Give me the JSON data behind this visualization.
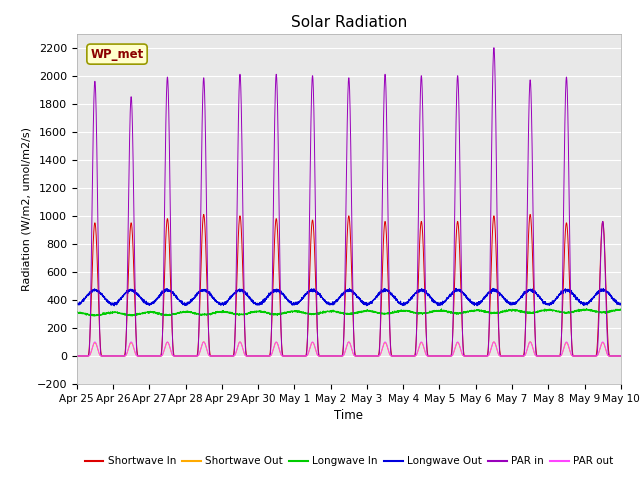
{
  "title": "Solar Radiation",
  "ylabel": "Radiation (W/m2, umol/m2/s)",
  "xlabel": "Time",
  "ylim": [
    -200,
    2300
  ],
  "yticks": [
    -200,
    0,
    200,
    400,
    600,
    800,
    1000,
    1200,
    1400,
    1600,
    1800,
    2000,
    2200
  ],
  "plot_bg": "#e8e8e8",
  "fig_bg": "#ffffff",
  "station_label": "WP_met",
  "colors": {
    "shortwave_in": "#dd0000",
    "shortwave_out": "#ffaa00",
    "longwave_in": "#00cc00",
    "longwave_out": "#0000dd",
    "par_in": "#9900bb",
    "par_out": "#ff44ff"
  },
  "n_days": 15,
  "ppd": 288,
  "xtick_labels": [
    "Apr 25",
    "Apr 26",
    "Apr 27",
    "Apr 28",
    "Apr 29",
    "Apr 30",
    "May 1",
    "May 2",
    "May 3",
    "May 4",
    "May 5",
    "May 6",
    "May 7",
    "May 8",
    "May 9",
    "May 10"
  ],
  "sw_in_peaks": [
    950,
    950,
    980,
    1010,
    1000,
    980,
    970,
    1000,
    960,
    960,
    960,
    1000,
    1010,
    950,
    960
  ],
  "par_in_peaks": [
    1960,
    1850,
    1990,
    1985,
    2010,
    2010,
    2000,
    1985,
    2010,
    2000,
    2000,
    2200,
    1970,
    1990,
    960
  ],
  "lw_out_base": 370,
  "lw_in_base": 310
}
